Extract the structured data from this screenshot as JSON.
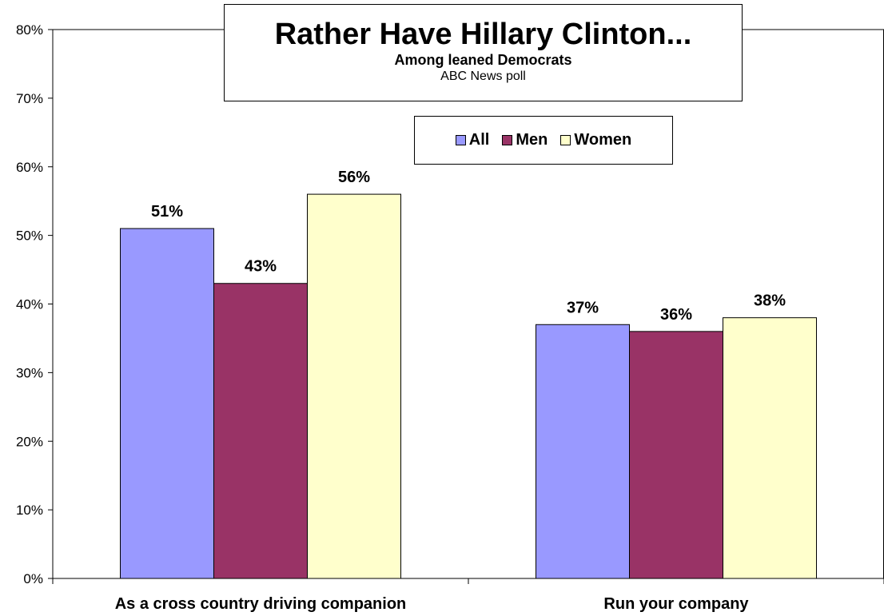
{
  "chart_data": {
    "type": "bar",
    "title": "Rather Have Hillary Clinton...",
    "subtitle": "Among leaned Democrats",
    "source": "ABC News poll",
    "categories": [
      "As a cross country driving companion",
      "Run your company"
    ],
    "series": [
      {
        "name": "All",
        "values": [
          51,
          37
        ],
        "color": "#9999ff"
      },
      {
        "name": "Men",
        "values": [
          43,
          36
        ],
        "color": "#993366"
      },
      {
        "name": "Women",
        "values": [
          56,
          38
        ],
        "color": "#ffffcc"
      }
    ],
    "data_labels": [
      [
        "51%",
        "37%"
      ],
      [
        "43%",
        "36%"
      ],
      [
        "56%",
        "38%"
      ]
    ],
    "ylim": [
      0,
      80
    ],
    "yticks": [
      0,
      10,
      20,
      30,
      40,
      50,
      60,
      70,
      80
    ],
    "ytick_labels": [
      "0%",
      "10%",
      "20%",
      "30%",
      "40%",
      "50%",
      "60%",
      "70%",
      "80%"
    ],
    "grid": false,
    "legend_position": "top-center"
  }
}
